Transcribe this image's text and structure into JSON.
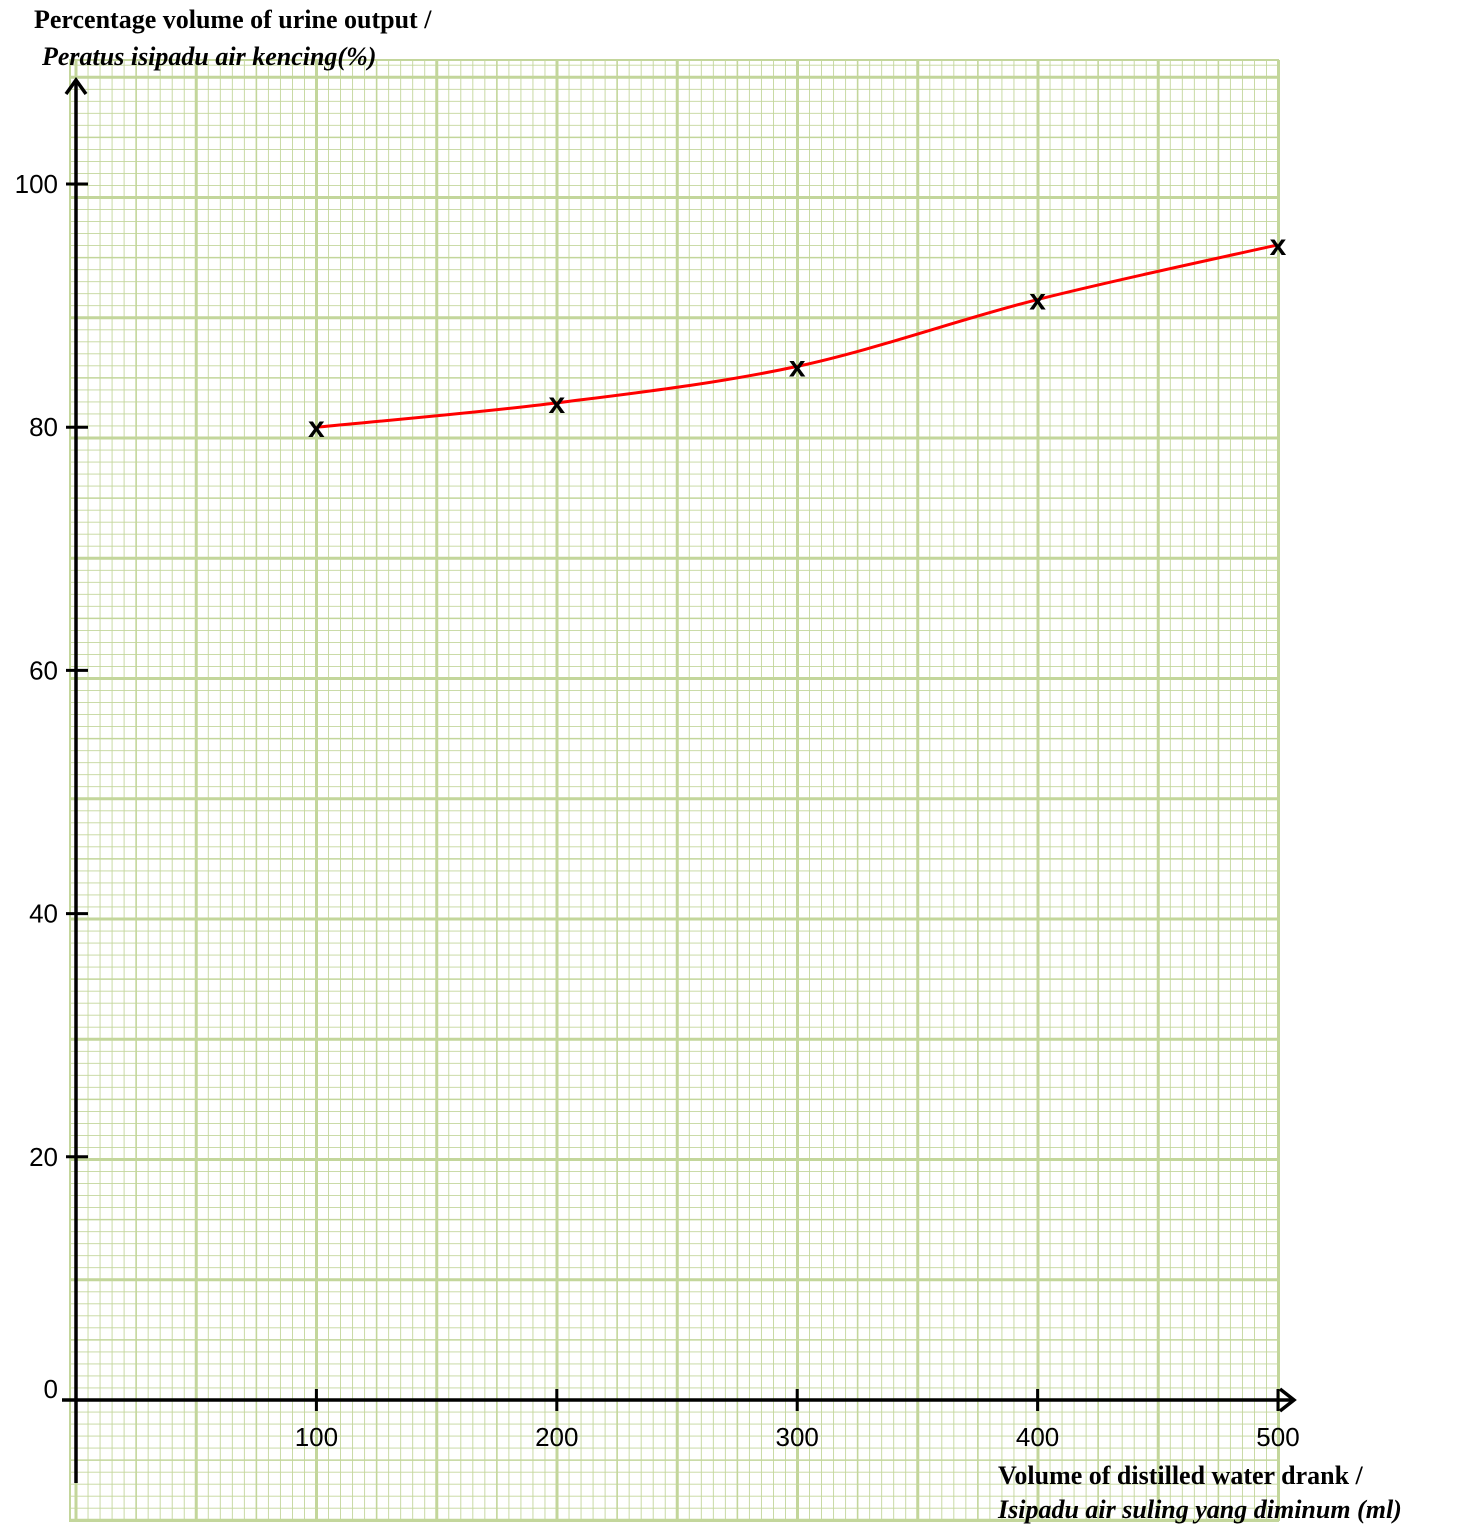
{
  "chart_data": {
    "type": "line",
    "ylabel_line1": "Percentage volume of urine output /",
    "ylabel_line2": "Peratus isipadu air kencing(%)",
    "xlabel_line1": "Volume of distilled water drank /",
    "xlabel_line2": "Isipadu air suling yang diminum (ml)",
    "x_ticks": [
      100,
      200,
      300,
      400,
      500
    ],
    "y_ticks": [
      0,
      20,
      40,
      60,
      80,
      100
    ],
    "xlim": [
      0,
      500
    ],
    "ylim": [
      0,
      100
    ],
    "grid": true,
    "series": [
      {
        "x": [
          100,
          200,
          300,
          400,
          500
        ],
        "y": [
          80,
          82,
          85,
          90.5,
          95
        ],
        "marker": "x",
        "color": "#ff0000"
      }
    ],
    "grid_color": "#c3d69b"
  }
}
